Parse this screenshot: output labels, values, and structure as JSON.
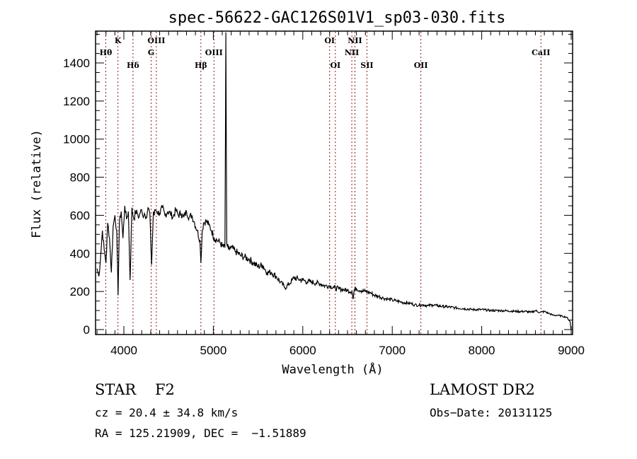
{
  "chart_data": {
    "type": "line",
    "title": "spec-56622-GAC126S01V1_sp03-030.fits",
    "xlabel": "Wavelength (Å)",
    "ylabel": "Flux (relative)",
    "xlim": [
      3690,
      9000
    ],
    "ylim": [
      0,
      1570
    ],
    "x_ticks": [
      4000,
      5000,
      6000,
      7000,
      8000,
      9000
    ],
    "x_tick_labels": [
      "4000",
      "5000",
      "6000",
      "7000",
      "8000",
      "9000"
    ],
    "y_ticks": [
      0,
      200,
      400,
      600,
      800,
      1000,
      1200,
      1400
    ],
    "y_tick_labels": [
      "0",
      "200",
      "400",
      "600",
      "800",
      "1000",
      "1200",
      "1400"
    ],
    "grid": false,
    "series": [
      {
        "name": "spectrum",
        "color": "#000000",
        "x": [
          3700,
          3720,
          3740,
          3760,
          3780,
          3800,
          3820,
          3840,
          3860,
          3880,
          3900,
          3920,
          3935,
          3950,
          3970,
          3990,
          4010,
          4030,
          4050,
          4070,
          4090,
          4102,
          4115,
          4130,
          4150,
          4170,
          4190,
          4210,
          4230,
          4250,
          4270,
          4290,
          4310,
          4330,
          4340,
          4350,
          4370,
          4400,
          4430,
          4460,
          4490,
          4520,
          4550,
          4580,
          4610,
          4640,
          4670,
          4700,
          4730,
          4760,
          4790,
          4820,
          4850,
          4861,
          4875,
          4890,
          4920,
          4950,
          4980,
          5010,
          5040,
          5070,
          5100,
          5130,
          5140,
          5150,
          5170,
          5200,
          5250,
          5300,
          5350,
          5400,
          5450,
          5500,
          5550,
          5600,
          5650,
          5700,
          5750,
          5800,
          5850,
          5880,
          5900,
          5950,
          6000,
          6050,
          6100,
          6150,
          6200,
          6250,
          6300,
          6350,
          6400,
          6450,
          6500,
          6550,
          6563,
          6575,
          6600,
          6650,
          6700,
          6750,
          6800,
          6850,
          6900,
          6950,
          7000,
          7050,
          7100,
          7150,
          7200,
          7250,
          7300,
          7350,
          7400,
          7450,
          7500,
          7600,
          7700,
          7800,
          7900,
          8000,
          8100,
          8200,
          8300,
          8400,
          8500,
          8550,
          8600,
          8650,
          8700,
          8750,
          8800,
          8850,
          8900,
          8950,
          8990
        ],
        "y": [
          320,
          280,
          380,
          520,
          420,
          350,
          560,
          480,
          300,
          540,
          600,
          520,
          180,
          560,
          620,
          480,
          650,
          580,
          620,
          260,
          640,
          600,
          580,
          620,
          610,
          590,
          630,
          600,
          610,
          590,
          640,
          610,
          340,
          620,
          600,
          630,
          620,
          610,
          640,
          600,
          620,
          610,
          590,
          630,
          600,
          610,
          590,
          620,
          590,
          600,
          560,
          520,
          470,
          350,
          510,
          560,
          570,
          550,
          520,
          480,
          470,
          460,
          440,
          430,
          1560,
          450,
          420,
          430,
          410,
          390,
          380,
          370,
          350,
          330,
          340,
          300,
          300,
          280,
          250,
          220,
          240,
          260,
          270,
          265,
          260,
          250,
          250,
          245,
          240,
          230,
          230,
          220,
          215,
          210,
          205,
          200,
          160,
          210,
          215,
          205,
          200,
          195,
          180,
          175,
          165,
          160,
          155,
          150,
          145,
          140,
          138,
          130,
          128,
          130,
          125,
          130,
          125,
          120,
          115,
          110,
          105,
          105,
          100,
          100,
          98,
          95,
          95,
          90,
          100,
          90,
          95,
          85,
          75,
          75,
          70,
          65,
          40
        ],
        "peak_note": "narrow spike near 5140 Å reaching top of frame"
      }
    ],
    "line_markers": [
      {
        "label": "Hθ",
        "wavelength": 3798,
        "row": 2
      },
      {
        "label": "K",
        "wavelength": 3934,
        "row": 1
      },
      {
        "label": "Hδ",
        "wavelength": 4102,
        "row": 3
      },
      {
        "label": "G",
        "wavelength": 4305,
        "row": 2
      },
      {
        "label": "OIII",
        "wavelength": 4363,
        "row": 1
      },
      {
        "label": "Hβ",
        "wavelength": 4861,
        "row": 3
      },
      {
        "label": "OIII",
        "wavelength": 5007,
        "row": 2
      },
      {
        "label": "OI",
        "wavelength": 6300,
        "row": 1
      },
      {
        "label": "OI",
        "wavelength": 6364,
        "row": 3
      },
      {
        "label": "NII",
        "wavelength": 6548,
        "row": 2
      },
      {
        "label": "NII",
        "wavelength": 6583,
        "row": 1
      },
      {
        "label": "SII",
        "wavelength": 6717,
        "row": 3
      },
      {
        "label": "OII",
        "wavelength": 7320,
        "row": 3
      },
      {
        "label": "CaII",
        "wavelength": 8662,
        "row": 2
      }
    ],
    "marker_color": "#8b1a1a"
  },
  "info": {
    "class_label": "STAR",
    "subclass_label": "F2",
    "redshift": "cz = 20.4 ± 34.8 km/s",
    "coords": "RA = 125.21909, DEC =  −1.51889",
    "survey": "LAMOST DR2",
    "obs_date": "Obs−Date: 20131125"
  }
}
